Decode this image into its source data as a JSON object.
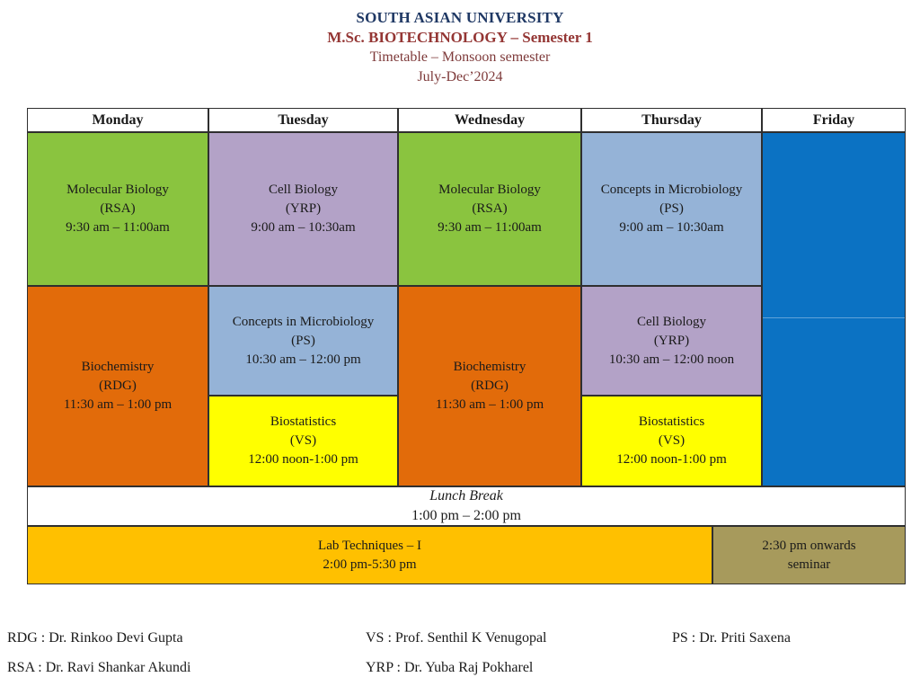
{
  "title": {
    "line1": "SOUTH ASIAN UNIVERSITY",
    "line2": "M.Sc. BIOTECHNOLOGY – Semester 1",
    "line3": "Timetable – Monsoon semester",
    "line4": "July-Dec’2024"
  },
  "colors": {
    "green": "#8AC43F",
    "lavender": "#B3A2C7",
    "lightblue": "#95B3D7",
    "orange": "#E26B0A",
    "yellow": "#FFFF00",
    "friday_blue": "#0B72C3",
    "amber": "#FFC000",
    "khaki": "#A79A5C",
    "title_navy": "#1F3864",
    "title_red": "#943634",
    "subtitle_maroon": "#7E3A3A"
  },
  "timetable": {
    "days": [
      "Monday",
      "Tuesday",
      "Wednesday",
      "Thursday",
      "Friday"
    ],
    "cells": [
      {
        "day": "Monday",
        "name": "Molecular Biology",
        "code": "(RSA)",
        "time": "9:30 am – 11:00am"
      },
      {
        "day": "Tuesday",
        "name": "Cell Biology",
        "code": "(YRP)",
        "time": "9:00 am – 10:30am"
      },
      {
        "day": "Wednesday",
        "name": "Molecular Biology",
        "code": "(RSA)",
        "time": "9:30 am – 11:00am"
      },
      {
        "day": "Thursday",
        "name": "Concepts in Microbiology (PS)",
        "code": "",
        "time": "9:00 am – 10:30am"
      },
      {
        "day": "Monday",
        "name": "Biochemistry",
        "code": "(RDG)",
        "time": "11:30 am – 1:00 pm"
      },
      {
        "day": "Tuesday",
        "name": "Concepts in Microbiology (PS)",
        "code": "",
        "time": "10:30 am – 12:00 pm"
      },
      {
        "day": "Tuesday",
        "name": "Biostatistics",
        "code": "(VS)",
        "time": "12:00 noon-1:00 pm"
      },
      {
        "day": "Wednesday",
        "name": "Biochemistry",
        "code": "(RDG)",
        "time": "11:30 am – 1:00 pm"
      },
      {
        "day": "Thursday",
        "name": "Cell Biology",
        "code": "(YRP)",
        "time": "10:30 am – 12:00 noon"
      },
      {
        "day": "Thursday",
        "name": "Biostatistics",
        "code": "(VS)",
        "time": "12:00 noon-1:00 pm"
      }
    ],
    "lunch": {
      "label": "Lunch Break",
      "time": "1:00 pm – 2:00 pm"
    },
    "lab": {
      "name": "Lab Techniques – I",
      "time": "2:00 pm-5:30 pm"
    },
    "seminar": {
      "line1": "2:30 pm onwards",
      "line2": "seminar"
    }
  },
  "legend": {
    "items": [
      "RDG : Dr. Rinkoo Devi Gupta",
      "VS : Prof. Senthil K Venugopal",
      "PS : Dr. Priti Saxena",
      "RSA : Dr. Ravi Shankar Akundi",
      "YRP : Dr. Yuba Raj Pokharel"
    ]
  }
}
